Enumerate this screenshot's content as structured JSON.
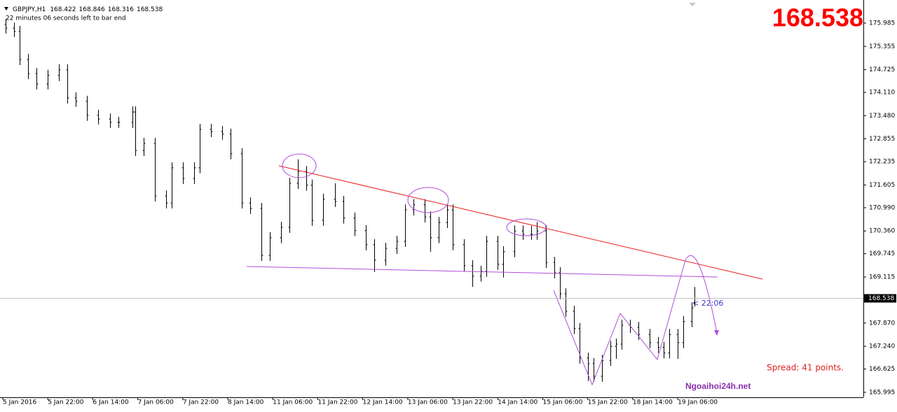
{
  "chart_data": {
    "type": "ohlc",
    "symbol": "GBPJPY,H1",
    "countdown": "22 minutes 06 seconds left to bar end",
    "timer": "< 22:06",
    "spread": "Spread: 41 points.",
    "watermark": "Ngoaihoi24h.net",
    "color": "#000000",
    "xlim": [
      -1,
      306
    ],
    "ylim": [
      165.86,
      176.61
    ],
    "xticks": [
      {
        "value": 0,
        "label": "5 Jan 2016"
      },
      {
        "value": 16,
        "label": "5 Jan 22:00"
      },
      {
        "value": 32,
        "label": "6 Jan 14:00"
      },
      {
        "value": 48,
        "label": "7 Jan 06:00"
      },
      {
        "value": 64,
        "label": "7 Jan 22:00"
      },
      {
        "value": 80,
        "label": "8 Jan 14:00"
      },
      {
        "value": 96,
        "label": "11 Jan 06:00"
      },
      {
        "value": 112,
        "label": "11 Jan 22:00"
      },
      {
        "value": 128,
        "label": "12 Jan 14:00"
      },
      {
        "value": 144,
        "label": "13 Jan 06:00"
      },
      {
        "value": 160,
        "label": "13 Jan 22:00"
      },
      {
        "value": 176,
        "label": "14 Jan 14:00"
      },
      {
        "value": 192,
        "label": "15 Jan 06:00"
      },
      {
        "value": 208,
        "label": "15 Jan 22:00"
      },
      {
        "value": 224,
        "label": "18 Jan 14:00"
      },
      {
        "value": 240,
        "label": "19 Jan 06:00"
      }
    ],
    "yticks": [
      175.985,
      175.355,
      174.725,
      {
        "value": 174.11,
        "label": "174.110"
      },
      {
        "value": 173.48,
        "label": "173.480"
      },
      172.855,
      172.235,
      171.605,
      {
        "value": 170.99,
        "label": "170.990"
      },
      {
        "value": 170.36,
        "label": "170.360"
      },
      169.745,
      169.115,
      {
        "value": 167.87,
        "label": "167.870"
      },
      {
        "value": 167.24,
        "label": "167.240"
      },
      166.625,
      165.995
    ],
    "x": [
      1,
      4,
      6,
      9,
      12,
      16,
      20,
      23,
      26,
      30,
      34,
      38,
      41,
      46,
      47,
      50,
      54,
      58,
      60,
      64,
      68,
      70,
      74,
      78,
      81,
      85,
      88,
      92,
      95,
      99,
      102,
      105,
      108,
      110,
      114,
      118,
      121,
      125,
      129,
      132,
      136,
      140,
      143,
      146,
      150,
      152,
      155,
      158,
      160,
      164,
      167,
      170,
      172,
      176,
      178,
      182,
      185,
      188,
      190,
      193,
      196,
      198,
      200,
      203,
      205,
      208,
      210,
      213,
      216,
      218,
      220,
      223,
      226,
      230,
      233,
      235,
      237,
      240,
      242,
      245,
      246
    ],
    "bars": [
      [
        175.95,
        176.1,
        175.7,
        175.85
      ],
      [
        175.85,
        176.0,
        175.61,
        175.76
      ],
      [
        175.76,
        175.91,
        174.85,
        175.0
      ],
      [
        175.0,
        175.15,
        174.47,
        174.62
      ],
      [
        174.62,
        174.77,
        174.19,
        174.34
      ],
      [
        174.34,
        174.72,
        174.19,
        174.57
      ],
      [
        174.57,
        174.87,
        174.42,
        174.72
      ],
      [
        174.72,
        174.87,
        173.81,
        173.96
      ],
      [
        173.96,
        174.11,
        173.72,
        173.87
      ],
      [
        173.87,
        174.02,
        173.34,
        173.49
      ],
      [
        173.49,
        173.64,
        173.24,
        173.39
      ],
      [
        173.39,
        173.54,
        173.15,
        173.3
      ],
      [
        173.3,
        173.45,
        173.15,
        173.3
      ],
      [
        173.3,
        173.73,
        173.15,
        173.58
      ],
      [
        173.58,
        173.73,
        172.39,
        172.54
      ],
      [
        172.54,
        172.88,
        172.39,
        172.73
      ],
      [
        172.73,
        172.88,
        171.16,
        171.31
      ],
      [
        171.31,
        171.46,
        170.97,
        171.12
      ],
      [
        171.12,
        172.22,
        170.97,
        172.07
      ],
      [
        172.07,
        172.22,
        171.63,
        171.78
      ],
      [
        171.78,
        172.22,
        171.63,
        172.07
      ],
      [
        172.07,
        173.26,
        171.92,
        173.11
      ],
      [
        173.11,
        173.26,
        172.9,
        173.05
      ],
      [
        173.05,
        173.2,
        172.83,
        172.98
      ],
      [
        172.98,
        173.13,
        172.3,
        172.45
      ],
      [
        172.45,
        172.6,
        170.97,
        171.12
      ],
      [
        171.12,
        171.27,
        170.82,
        170.97
      ],
      [
        170.97,
        171.12,
        169.55,
        169.7
      ],
      [
        169.7,
        170.33,
        169.55,
        170.18
      ],
      [
        170.18,
        170.61,
        170.03,
        170.46
      ],
      [
        170.46,
        171.8,
        170.31,
        171.65
      ],
      [
        171.65,
        172.3,
        171.5,
        171.97
      ],
      [
        171.97,
        172.12,
        171.45,
        171.6
      ],
      [
        171.6,
        171.75,
        170.5,
        170.65
      ],
      [
        170.65,
        171.37,
        170.5,
        171.22
      ],
      [
        171.22,
        171.65,
        171.01,
        171.16
      ],
      [
        171.16,
        171.31,
        170.56,
        170.71
      ],
      [
        170.71,
        170.86,
        170.22,
        170.37
      ],
      [
        170.37,
        170.52,
        169.84,
        169.99
      ],
      [
        169.99,
        170.14,
        169.25,
        169.57
      ],
      [
        169.57,
        170.04,
        169.42,
        169.89
      ],
      [
        169.89,
        170.23,
        169.74,
        170.08
      ],
      [
        170.08,
        171.08,
        169.93,
        170.93
      ],
      [
        170.93,
        171.22,
        170.78,
        171.07
      ],
      [
        171.07,
        171.22,
        170.59,
        170.74
      ],
      [
        170.74,
        170.89,
        169.8,
        170.18
      ],
      [
        170.18,
        170.74,
        170.03,
        170.59
      ],
      [
        170.59,
        171.08,
        170.44,
        170.93
      ],
      [
        170.93,
        171.08,
        169.84,
        169.99
      ],
      [
        169.99,
        170.14,
        169.27,
        169.42
      ],
      [
        169.42,
        169.57,
        168.85,
        169.14
      ],
      [
        169.14,
        169.42,
        168.99,
        169.27
      ],
      [
        169.27,
        170.23,
        169.12,
        170.08
      ],
      [
        170.08,
        170.23,
        169.31,
        169.46
      ],
      [
        169.46,
        169.95,
        169.1,
        169.8
      ],
      [
        169.8,
        170.51,
        169.65,
        170.36
      ],
      [
        170.36,
        170.51,
        170.12,
        170.27
      ],
      [
        170.27,
        170.5,
        170.12,
        170.27
      ],
      [
        170.27,
        170.6,
        170.12,
        170.36
      ],
      [
        170.36,
        170.51,
        169.36,
        169.51
      ],
      [
        169.51,
        169.66,
        169.08,
        169.23
      ],
      [
        169.23,
        169.38,
        168.51,
        168.66
      ],
      [
        168.66,
        168.81,
        168.04,
        168.19
      ],
      [
        168.19,
        168.34,
        167.57,
        167.72
      ],
      [
        167.72,
        167.87,
        166.77,
        166.92
      ],
      [
        166.92,
        167.07,
        166.3,
        166.77
      ],
      [
        166.77,
        166.92,
        166.28,
        166.43
      ],
      [
        166.43,
        167.01,
        166.28,
        166.86
      ],
      [
        166.86,
        167.39,
        166.71,
        167.24
      ],
      [
        167.24,
        167.45,
        166.9,
        167.3
      ],
      [
        167.3,
        167.96,
        167.15,
        167.81
      ],
      [
        167.81,
        167.96,
        167.6,
        167.75
      ],
      [
        167.75,
        167.9,
        167.41,
        167.56
      ],
      [
        167.56,
        167.71,
        167.19,
        167.34
      ],
      [
        167.34,
        167.49,
        167.06,
        167.21
      ],
      [
        167.21,
        167.36,
        166.91,
        167.06
      ],
      [
        167.06,
        167.71,
        166.91,
        167.56
      ],
      [
        167.56,
        167.71,
        166.9,
        167.34
      ],
      [
        167.34,
        168.06,
        167.19,
        167.91
      ],
      [
        167.91,
        168.43,
        167.76,
        168.28
      ],
      [
        168.422,
        168.846,
        168.316,
        168.538
      ]
    ]
  }
}
